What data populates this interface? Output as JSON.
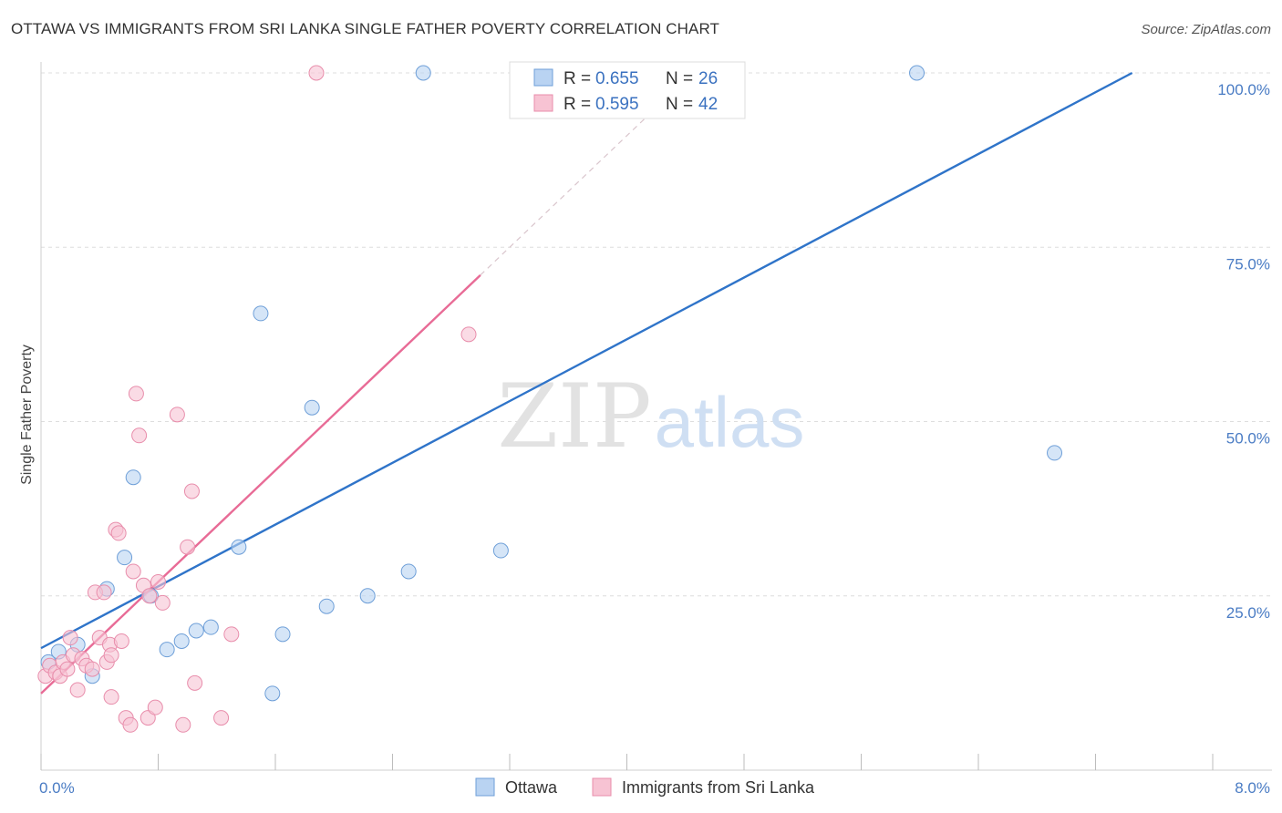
{
  "header": {
    "title": "OTTAWA VS IMMIGRANTS FROM SRI LANKA SINGLE FATHER POVERTY CORRELATION CHART",
    "source": "Source: ZipAtlas.com"
  },
  "watermark": {
    "zip": "ZIP",
    "atlas": "atlas"
  },
  "legend": {
    "r_label": "R =",
    "n_label": "N =",
    "entries": [
      {
        "r": "0.655",
        "n": "26"
      },
      {
        "r": "0.595",
        "n": "42"
      }
    ]
  },
  "colors": {
    "ottawa_fill": "#b9d3f2",
    "ottawa_stroke": "#6e9fd8",
    "ottawa_line": "#2f74c9",
    "srilanka_fill": "#f7c3d3",
    "srilanka_stroke": "#e88dab",
    "srilanka_line": "#e86b96",
    "tick_color": "#4a7cc4"
  },
  "chart_data": {
    "type": "scatter",
    "title": "OTTAWA VS IMMIGRANTS FROM SRI LANKA SINGLE FATHER POVERTY CORRELATION CHART",
    "xlabel": "",
    "ylabel": "Single Father Poverty",
    "xlim": [
      0,
      8
    ],
    "ylim": [
      0,
      100
    ],
    "x_tick_labels": [
      "0.0%",
      "8.0%"
    ],
    "y_ticks": [
      25,
      50,
      75,
      100
    ],
    "y_tick_labels": [
      "25.0%",
      "50.0%",
      "75.0%",
      "100.0%"
    ],
    "grid": true,
    "legend_position": "top-center",
    "series": [
      {
        "name": "Ottawa",
        "r": 0.655,
        "n": 26,
        "trend": {
          "x": [
            0,
            7.45
          ],
          "y": [
            17.5,
            100
          ]
        },
        "points": [
          [
            0.05,
            15.5
          ],
          [
            0.12,
            17.0
          ],
          [
            0.25,
            18.0
          ],
          [
            0.35,
            13.5
          ],
          [
            0.45,
            26.0
          ],
          [
            0.57,
            30.5
          ],
          [
            0.63,
            42.0
          ],
          [
            0.75,
            25.0
          ],
          [
            0.86,
            17.3
          ],
          [
            0.96,
            18.5
          ],
          [
            1.06,
            20.0
          ],
          [
            1.16,
            20.5
          ],
          [
            1.35,
            32.0
          ],
          [
            1.5,
            65.5
          ],
          [
            1.58,
            11.0
          ],
          [
            1.65,
            19.5
          ],
          [
            1.85,
            52.0
          ],
          [
            1.95,
            23.5
          ],
          [
            2.23,
            25.0
          ],
          [
            2.51,
            28.5
          ],
          [
            2.61,
            100.0
          ],
          [
            3.14,
            31.5
          ],
          [
            3.55,
            100.0
          ],
          [
            4.56,
            100.0
          ],
          [
            5.98,
            100.0
          ],
          [
            6.92,
            45.5
          ]
        ]
      },
      {
        "name": "Immigrants from Sri Lanka",
        "r": 0.595,
        "n": 42,
        "trend": {
          "x": [
            0,
            3.0
          ],
          "y": [
            11.0,
            71.0
          ]
        },
        "trend_dashed": {
          "x": [
            3.0,
            4.2
          ],
          "y": [
            71.0,
            95.0
          ]
        },
        "points": [
          [
            0.03,
            13.5
          ],
          [
            0.06,
            15.0
          ],
          [
            0.1,
            14.0
          ],
          [
            0.13,
            13.5
          ],
          [
            0.15,
            15.5
          ],
          [
            0.18,
            14.5
          ],
          [
            0.2,
            19.0
          ],
          [
            0.22,
            16.5
          ],
          [
            0.25,
            11.5
          ],
          [
            0.28,
            16.0
          ],
          [
            0.31,
            15.0
          ],
          [
            0.35,
            14.5
          ],
          [
            0.37,
            25.5
          ],
          [
            0.4,
            19.0
          ],
          [
            0.43,
            25.5
          ],
          [
            0.45,
            15.5
          ],
          [
            0.47,
            18.0
          ],
          [
            0.48,
            16.5
          ],
          [
            0.48,
            10.5
          ],
          [
            0.51,
            34.5
          ],
          [
            0.53,
            34.0
          ],
          [
            0.55,
            18.5
          ],
          [
            0.58,
            7.5
          ],
          [
            0.61,
            6.5
          ],
          [
            0.63,
            28.5
          ],
          [
            0.65,
            54.0
          ],
          [
            0.67,
            48.0
          ],
          [
            0.7,
            26.5
          ],
          [
            0.73,
            7.5
          ],
          [
            0.74,
            25.0
          ],
          [
            0.78,
            9.0
          ],
          [
            0.8,
            27.0
          ],
          [
            0.83,
            24.0
          ],
          [
            0.93,
            51.0
          ],
          [
            0.97,
            6.5
          ],
          [
            1.0,
            32.0
          ],
          [
            1.03,
            40.0
          ],
          [
            1.05,
            12.5
          ],
          [
            1.23,
            7.5
          ],
          [
            1.3,
            19.5
          ],
          [
            1.88,
            100.0
          ],
          [
            2.92,
            62.5
          ]
        ]
      }
    ]
  }
}
